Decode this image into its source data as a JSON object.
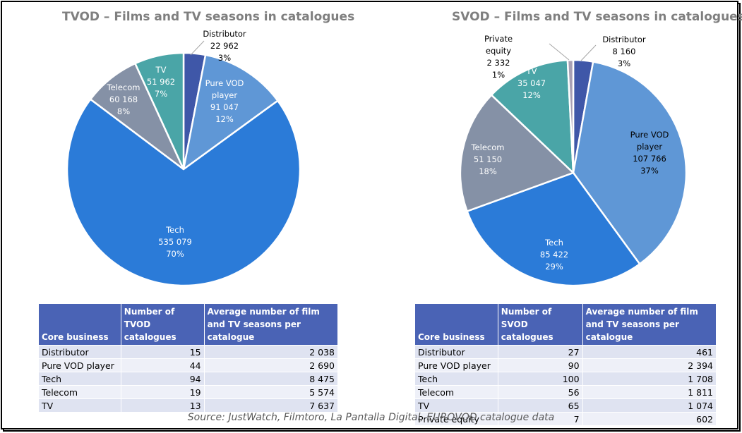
{
  "chart_data": [
    {
      "type": "pie",
      "title": "TVOD – Films and TV seasons in catalogues",
      "slices": [
        {
          "name": "Distributor",
          "value": 22962,
          "value_label": "22 962",
          "pct": "3%",
          "color": "#3f57a8"
        },
        {
          "name": "Pure VOD player",
          "value": 91047,
          "value_label": "91 047",
          "pct": "12%",
          "color": "#5f97d6"
        },
        {
          "name": "Tech",
          "value": 535079,
          "value_label": "535 079",
          "pct": "70%",
          "color": "#2b7bd8"
        },
        {
          "name": "Telecom",
          "value": 60168,
          "value_label": "60 168",
          "pct": "8%",
          "color": "#8591a6"
        },
        {
          "name": "TV",
          "value": 51962,
          "value_label": "51 962",
          "pct": "7%",
          "color": "#4aa5a7"
        }
      ]
    },
    {
      "type": "pie",
      "title": "SVOD – Films and TV seasons in catalogues",
      "slices": [
        {
          "name": "Distributor",
          "value": 8160,
          "value_label": "8 160",
          "pct": "3%",
          "color": "#3f57a8"
        },
        {
          "name": "Pure VOD player",
          "value": 107766,
          "value_label": "107 766",
          "pct": "37%",
          "color": "#5f97d6"
        },
        {
          "name": "Tech",
          "value": 85422,
          "value_label": "85 422",
          "pct": "29%",
          "color": "#2b7bd8"
        },
        {
          "name": "Telecom",
          "value": 51150,
          "value_label": "51 150",
          "pct": "18%",
          "color": "#8591a6"
        },
        {
          "name": "TV",
          "value": 35047,
          "value_label": "35 047",
          "pct": "12%",
          "color": "#4aa5a7"
        },
        {
          "name": "Private equity",
          "value": 2332,
          "value_label": "2 332",
          "pct": "1%",
          "color": "#a8a0b4"
        }
      ]
    },
    {
      "type": "table",
      "columns": [
        "Core business",
        "Number of TVOD catalogues",
        "Average number of film and TV seasons per catalogue"
      ],
      "rows": [
        [
          "Distributor",
          "15",
          "2 038"
        ],
        [
          "Pure VOD player",
          "44",
          "2 690"
        ],
        [
          "Tech",
          "94",
          "8 475"
        ],
        [
          "Telecom",
          "19",
          "5 574"
        ],
        [
          "TV",
          "13",
          "7 637"
        ]
      ]
    },
    {
      "type": "table",
      "columns": [
        "Core business",
        "Number of SVOD catalogues",
        "Average number of film and TV seasons per catalogue"
      ],
      "rows": [
        [
          "Distributor",
          "27",
          "461"
        ],
        [
          "Pure VOD player",
          "90",
          "2 394"
        ],
        [
          "Tech",
          "100",
          "1 708"
        ],
        [
          "Telecom",
          "56",
          "1 811"
        ],
        [
          "TV",
          "65",
          "1 074"
        ],
        [
          "Private equity",
          "7",
          "602"
        ]
      ]
    }
  ],
  "source": "Source: JustWatch, Filmtoro, La Pantalla Digital, EUROVOD catalogue data"
}
